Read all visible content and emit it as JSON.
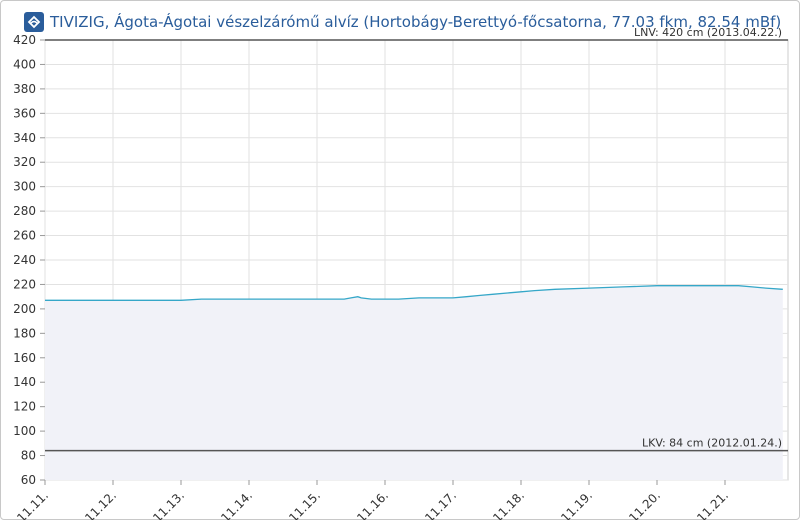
{
  "header": {
    "title": "TIVIZIG, Ágota-Ágotai vészelzárómű alvíz (Hortobágy-Berettyó-főcsatorna, 77.03 fkm, 82.54 mBf)",
    "logo_icon": "tivizig-logo-icon"
  },
  "colors": {
    "series": "#35a7c8",
    "area": "#f1f2f8",
    "reference": "#555555",
    "title": "#2a5d9b"
  },
  "chart_data": {
    "type": "area",
    "title": "TIVIZIG, Ágota-Ágotai vészelzárómű alvíz (Hortobágy-Berettyó-főcsatorna, 77.03 fkm, 82.54 mBf)",
    "xlabel": "",
    "ylabel": "",
    "ylim": [
      60,
      420
    ],
    "y_ticks": [
      60,
      80,
      100,
      120,
      140,
      160,
      180,
      200,
      220,
      240,
      260,
      280,
      300,
      320,
      340,
      360,
      380,
      400,
      420
    ],
    "x_ticks": [
      "11.11.",
      "11.12.",
      "11.13.",
      "11.14.",
      "11.15.",
      "11.16.",
      "11.17.",
      "11.18.",
      "11.19.",
      "11.20.",
      "11.21."
    ],
    "x_domain_days": [
      0,
      10.85
    ],
    "grid": true,
    "series": [
      {
        "x": [
          0,
          0.5,
          1.0,
          1.5,
          2.0,
          2.3,
          2.5,
          3.0,
          3.5,
          4.0,
          4.4,
          4.5,
          4.6,
          4.65,
          4.8,
          5.0,
          5.2,
          5.5,
          6.0,
          6.2,
          6.4,
          6.6,
          6.8,
          7.0,
          7.2,
          7.5,
          8.0,
          8.5,
          9.0,
          9.5,
          10.0,
          10.2,
          10.4,
          10.6,
          10.85
        ],
        "y": [
          207,
          207,
          207,
          207,
          207,
          208,
          208,
          208,
          208,
          208,
          208,
          209,
          210,
          209,
          208,
          208,
          208,
          209,
          209,
          210,
          211,
          212,
          213,
          214,
          215,
          216,
          217,
          218,
          219,
          219,
          219,
          219,
          218,
          217,
          216
        ]
      }
    ],
    "reference_lines": [
      {
        "label": "LNV: 420 cm (2013.04.22.)",
        "y": 420
      },
      {
        "label": "LKV: 84 cm (2012.01.24.)",
        "y": 84
      }
    ]
  }
}
